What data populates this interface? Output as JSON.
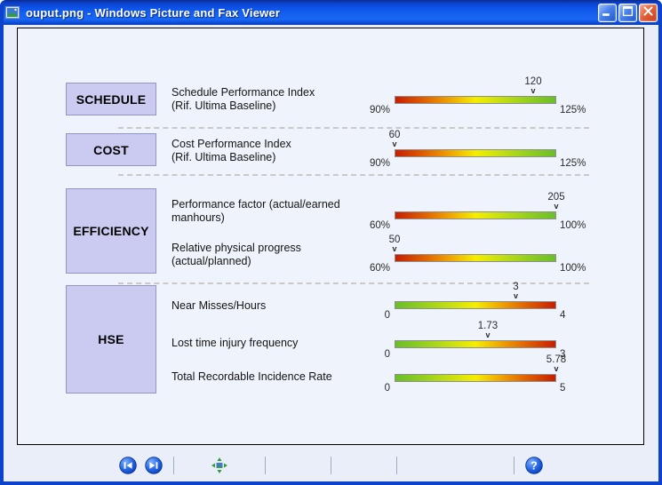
{
  "window": {
    "title": "ouput.png - Windows Picture and Fax Viewer",
    "icon": "picture-viewer-icon",
    "controls": [
      {
        "name": "minimize"
      },
      {
        "name": "maximize"
      },
      {
        "name": "close"
      }
    ]
  },
  "dashboard": {
    "sections": [
      {
        "category": "SCHEDULE",
        "rows": [
          {
            "label_lines": [
              "Schedule Performance Index",
              "(Rif. Ultima Baseline)"
            ],
            "value": 120,
            "value_label": "120",
            "min": 90,
            "max": 125,
            "min_label": "90%",
            "max_label": "125%",
            "marker_glyph": "v",
            "gradient": "red_to_green"
          }
        ]
      },
      {
        "category": "COST",
        "rows": [
          {
            "label_lines": [
              "Cost Performance Index",
              "(Rif. Ultima Baseline)"
            ],
            "value": 60,
            "value_label": "60",
            "min": 90,
            "max": 125,
            "min_label": "90%",
            "max_label": "125%",
            "marker_glyph": "v",
            "gradient": "red_to_green"
          }
        ]
      },
      {
        "category": "EFFICIENCY",
        "rows": [
          {
            "label_lines": [
              "Performance factor (actual/earned",
              "manhours)"
            ],
            "value": 205,
            "value_label": "205",
            "min": 60,
            "max": 100,
            "min_label": "60%",
            "max_label": "100%",
            "marker_glyph": "v",
            "gradient": "red_to_green"
          },
          {
            "label_lines": [
              "Relative physical progress",
              "(actual/planned)"
            ],
            "value": 50,
            "value_label": "50",
            "min": 60,
            "max": 100,
            "min_label": "60%",
            "max_label": "100%",
            "marker_glyph": "v",
            "gradient": "red_to_green"
          }
        ]
      },
      {
        "category": "HSE",
        "rows": [
          {
            "label_lines": [
              "Near Misses/Hours"
            ],
            "value": 3,
            "value_label": "3",
            "min": 0,
            "max": 4,
            "min_label": "0",
            "max_label": "4",
            "marker_glyph": "v",
            "gradient": "green_to_red"
          },
          {
            "label_lines": [
              "Lost time injury frequency"
            ],
            "value": 1.73,
            "value_label": "1.73",
            "min": 0,
            "max": 3,
            "min_label": "0",
            "max_label": "3",
            "marker_glyph": "v",
            "gradient": "green_to_red"
          },
          {
            "label_lines": [
              "Total Recordable Incidence Rate"
            ],
            "value": 5.78,
            "value_label": "5.78",
            "min": 0,
            "max": 5,
            "min_label": "0",
            "max_label": "5",
            "marker_glyph": "v",
            "gradient": "green_to_red"
          }
        ]
      }
    ]
  },
  "toolbar": {
    "groups": [
      {
        "buttons": [
          {
            "name": "previous-image",
            "icon": "previous-icon"
          },
          {
            "name": "next-image",
            "icon": "next-icon"
          }
        ]
      },
      {
        "buttons": [
          {
            "name": "best-fit",
            "icon": "best-fit-icon"
          },
          {
            "name": "actual-size",
            "icon": "actual-size-icon"
          },
          {
            "name": "start-slideshow",
            "icon": "slideshow-icon"
          }
        ]
      },
      {
        "buttons": [
          {
            "name": "zoom-in",
            "icon": "zoom-in-icon"
          },
          {
            "name": "zoom-out",
            "icon": "zoom-out-icon"
          }
        ]
      },
      {
        "buttons": [
          {
            "name": "rotate-clockwise",
            "icon": "rotate-clockwise-icon"
          },
          {
            "name": "rotate-counterclockwise",
            "icon": "rotate-counterclockwise-icon"
          }
        ]
      },
      {
        "buttons": [
          {
            "name": "delete",
            "icon": "delete-icon"
          },
          {
            "name": "print",
            "icon": "print-icon"
          },
          {
            "name": "save",
            "icon": "save-icon"
          },
          {
            "name": "edit",
            "icon": "edit-icon"
          }
        ]
      },
      {
        "buttons": [
          {
            "name": "help",
            "icon": "help-icon"
          }
        ]
      }
    ]
  },
  "colors": {
    "bar_gradient_stops": [
      "#c81e00",
      "#f0a800",
      "#f4ee00",
      "#96d01e",
      "#6abe28"
    ],
    "category_box_fill": "#cbcbf1",
    "category_box_border": "#9595c5",
    "canvas_bg": "#eff3fc",
    "client_bg": "#e9eef9",
    "titlebar_blue": "#1660ef",
    "close_button_red": "#e4633a",
    "delete_x_red": "#cc2b2b"
  }
}
